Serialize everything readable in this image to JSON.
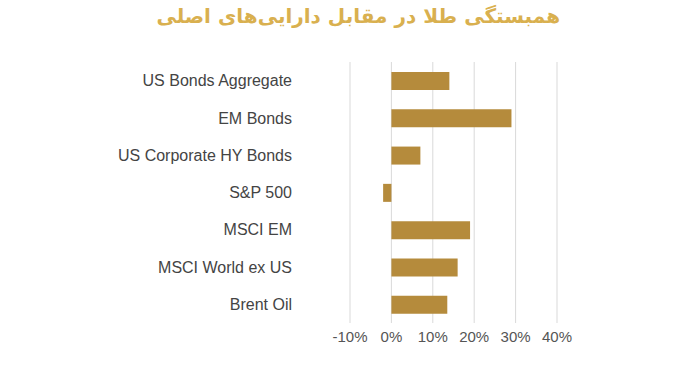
{
  "chart_data": {
    "type": "bar",
    "title": "همبستگی طلا در مقابل دارایی‌های اصلی",
    "orientation": "horizontal",
    "categories": [
      "US Bonds Aggregate",
      "EM Bonds",
      "US Corporate HY Bonds",
      "S&P 500",
      "MSCI EM",
      "MSCI World ex US",
      "Brent Oil"
    ],
    "values": [
      14,
      29,
      7,
      -2,
      19,
      16,
      13.5
    ],
    "color": "#b58b3c",
    "xlim": [
      -10,
      40
    ],
    "xticks": [
      {
        "value": -10,
        "label": "-10%"
      },
      {
        "value": 0,
        "label": "0%"
      },
      {
        "value": 10,
        "label": "10%"
      },
      {
        "value": 20,
        "label": "20%"
      },
      {
        "value": 30,
        "label": "30%"
      },
      {
        "value": 40,
        "label": "40%"
      }
    ],
    "grid": true
  }
}
